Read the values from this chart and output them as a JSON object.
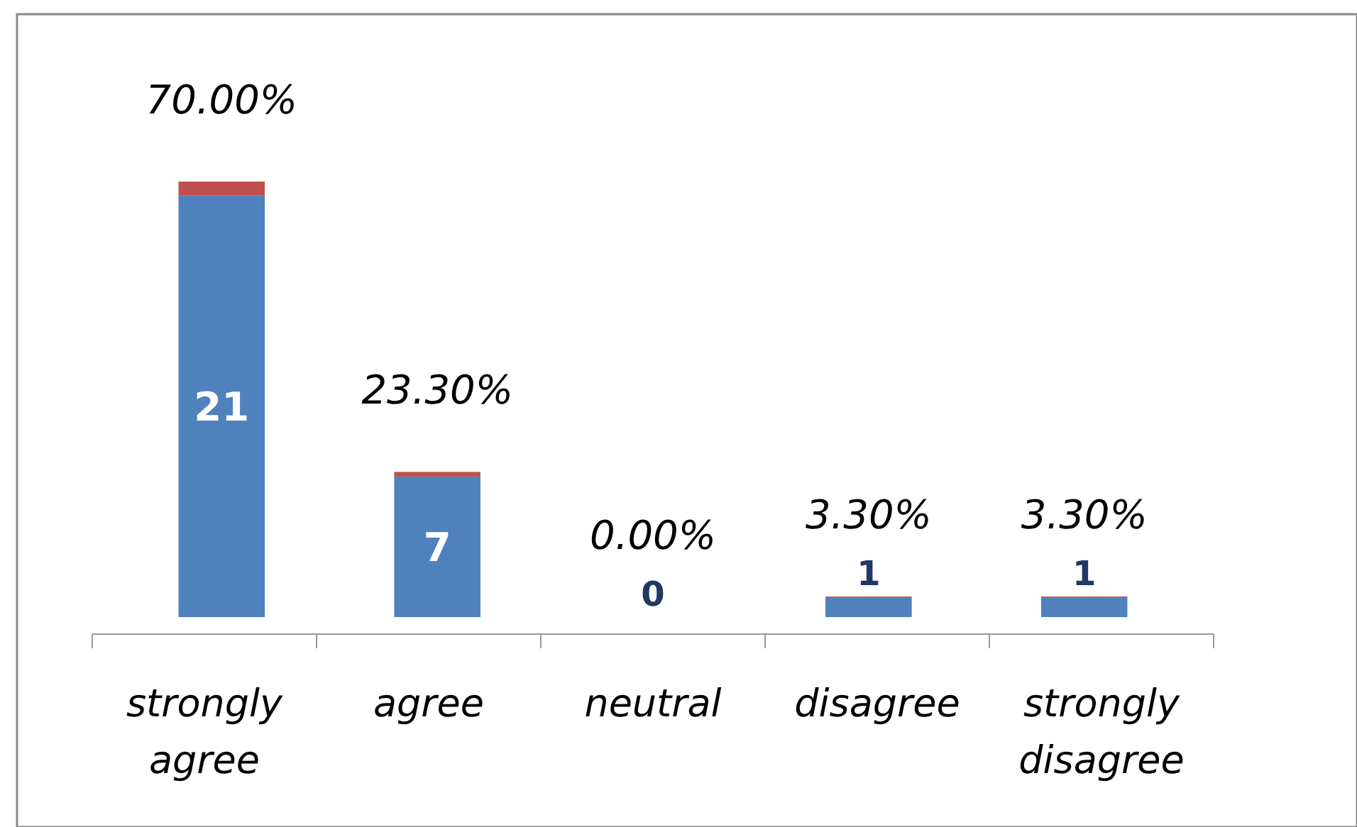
{
  "chart_data": {
    "type": "bar",
    "stacked": true,
    "data_labels": true,
    "categories": [
      "strongly agree",
      "agree",
      "neutral",
      "disagree",
      "strongly disagree"
    ],
    "series": [
      {
        "color": "#4f81bd",
        "values": [
          21,
          7,
          0,
          1,
          1
        ]
      },
      {
        "color": "#c0504d",
        "values": [
          0.7,
          0.233,
          0,
          0.033,
          0.033
        ],
        "value_labels": [
          "70.00%",
          "23.30%",
          "0.00%",
          "3.30%",
          "3.30%"
        ]
      }
    ]
  }
}
